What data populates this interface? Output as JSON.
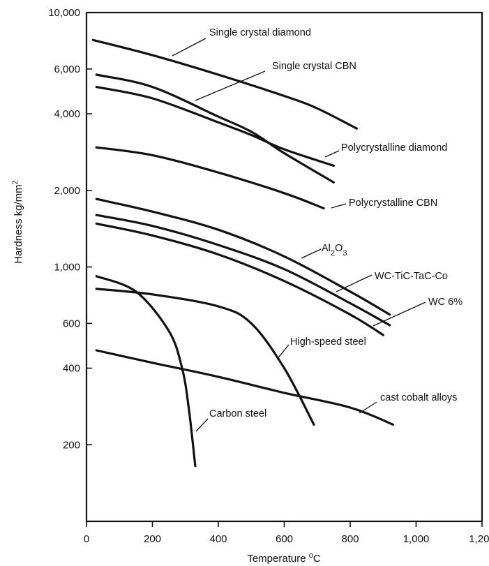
{
  "chart_data": {
    "type": "line",
    "title": "",
    "xlabel": "Temperature °C",
    "ylabel": "Hardness kg/mm²",
    "x_scale": "linear",
    "y_scale": "log",
    "xlim": [
      0,
      1200
    ],
    "ylim": [
      100,
      10000
    ],
    "x_ticks": [
      0,
      200,
      400,
      600,
      800,
      1000,
      1200
    ],
    "x_tick_labels": [
      "0",
      "200",
      "400",
      "600",
      "800",
      "1,000",
      "1,200"
    ],
    "y_ticks": [
      200,
      400,
      600,
      1000,
      2000,
      4000,
      6000,
      10000
    ],
    "y_tick_labels": [
      "200",
      "400",
      "600",
      "1,000",
      "2,000",
      "4,000",
      "6,000",
      "10,000"
    ],
    "grid": false,
    "legend": "none (series labeled directly with leader lines)",
    "series": [
      {
        "name": "Single crystal diamond",
        "x": [
          20,
          200,
          400,
          600,
          700,
          820
        ],
        "y": [
          7800,
          6800,
          5700,
          4700,
          4200,
          3500
        ]
      },
      {
        "name": "Single crystal CBN",
        "x": [
          30,
          200,
          400,
          500,
          600,
          750
        ],
        "y": [
          5700,
          5100,
          3900,
          3400,
          2800,
          2150
        ]
      },
      {
        "name": "Polycrystalline diamond",
        "x": [
          30,
          200,
          400,
          500,
          600,
          750
        ],
        "y": [
          5100,
          4600,
          3700,
          3300,
          2900,
          2500
        ]
      },
      {
        "name": "Polycrystalline CBN",
        "x": [
          30,
          200,
          400,
          600,
          720
        ],
        "y": [
          2950,
          2750,
          2350,
          1950,
          1700
        ]
      },
      {
        "name": "Al2O3",
        "x": [
          30,
          200,
          400,
          600,
          800,
          920
        ],
        "y": [
          1850,
          1650,
          1400,
          1100,
          800,
          650
        ]
      },
      {
        "name": "WC-TiC-TaC-Co",
        "x": [
          30,
          200,
          400,
          600,
          800,
          920
        ],
        "y": [
          1600,
          1450,
          1220,
          980,
          720,
          590
        ]
      },
      {
        "name": "WC 6%",
        "x": [
          30,
          200,
          400,
          600,
          800,
          900
        ],
        "y": [
          1480,
          1330,
          1120,
          880,
          650,
          540
        ]
      },
      {
        "name": "High-speed steel",
        "x": [
          30,
          200,
          400,
          500,
          600,
          690
        ],
        "y": [
          820,
          780,
          700,
          600,
          400,
          240
        ]
      },
      {
        "name": "Carbon steel",
        "x": [
          30,
          150,
          250,
          290,
          310,
          330
        ],
        "y": [
          920,
          800,
          560,
          400,
          280,
          165
        ]
      },
      {
        "name": "cast cobalt alloys",
        "x": [
          30,
          200,
          400,
          600,
          800,
          930
        ],
        "y": [
          470,
          420,
          370,
          320,
          280,
          240
        ]
      }
    ],
    "labels": {
      "single_crystal_diamond": "Single crystal diamond",
      "single_crystal_cbn": "Single crystal CBN",
      "polycrystalline_diamond": "Polycrystalline diamond",
      "polycrystalline_cbn": "Polycrystalline CBN",
      "al2o3_base": "Al",
      "al2o3_sub1": "2",
      "al2o3_mid": "O",
      "al2o3_sub2": "3",
      "wc_tic": "WC-TiC-TaC-Co",
      "wc6": "WC 6%",
      "hss": "High-speed steel",
      "carbon_steel": "Carbon steel",
      "cobalt": "cast cobalt alloys"
    },
    "axis_text": {
      "xlabel_base": "Temperature ",
      "xlabel_sup": "o",
      "xlabel_tail": "C",
      "ylabel_base": "Hardness kg/mm",
      "ylabel_sup": "2"
    }
  }
}
